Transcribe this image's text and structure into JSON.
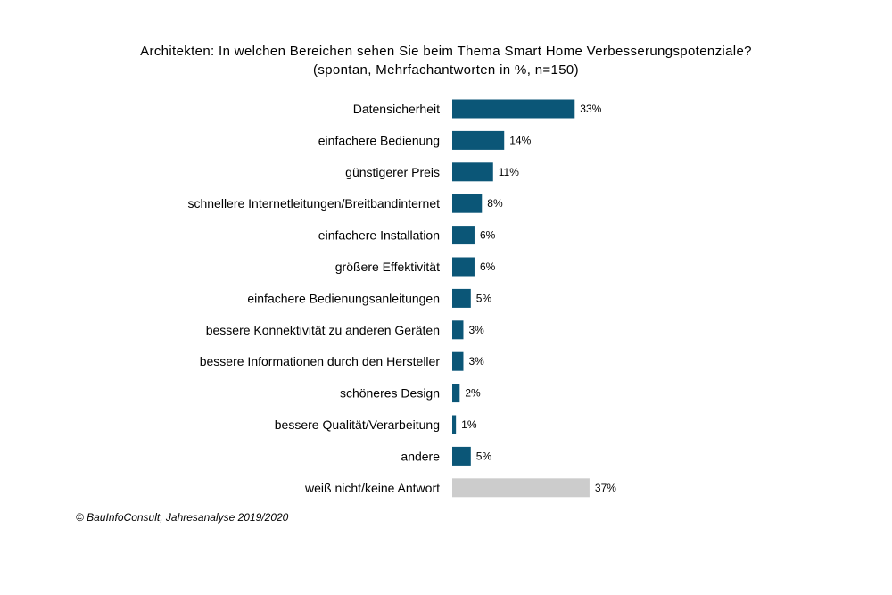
{
  "chart_data": {
    "type": "bar",
    "orientation": "horizontal",
    "title": "Architekten: In welchen Bereichen sehen Sie beim Thema Smart Home Verbesserungspotenziale?",
    "subtitle": "(spontan, Mehrfachantworten in %, n=150)",
    "categories": [
      "Datensicherheit",
      "einfachere Bedienung",
      "günstigerer Preis",
      "schnellere Internetleitungen/Breitbandinternet",
      "einfachere Installation",
      "größere Effektivität",
      "einfachere Bedienungsanleitungen",
      "bessere Konnektivität zu anderen Geräten",
      "bessere Informationen durch den Hersteller",
      "schöneres Design",
      "bessere Qualität/Verarbeitung",
      "andere",
      "weiß nicht/keine Antwort"
    ],
    "values": [
      33,
      14,
      11,
      8,
      6,
      6,
      5,
      3,
      3,
      2,
      1,
      5,
      37
    ],
    "value_labels": [
      "33%",
      "14%",
      "11%",
      "8%",
      "6%",
      "6%",
      "5%",
      "3%",
      "3%",
      "2%",
      "1%",
      "5%",
      "37%"
    ],
    "bar_colors": [
      "#0b5677",
      "#0b5677",
      "#0b5677",
      "#0b5677",
      "#0b5677",
      "#0b5677",
      "#0b5677",
      "#0b5677",
      "#0b5677",
      "#0b5677",
      "#0b5677",
      "#0b5677",
      "#cccccc"
    ],
    "xlim": [
      0,
      37
    ],
    "grid": false,
    "legend": "none"
  },
  "source_note": "© BauInfoConsult, Jahresanalyse 2019/2020"
}
